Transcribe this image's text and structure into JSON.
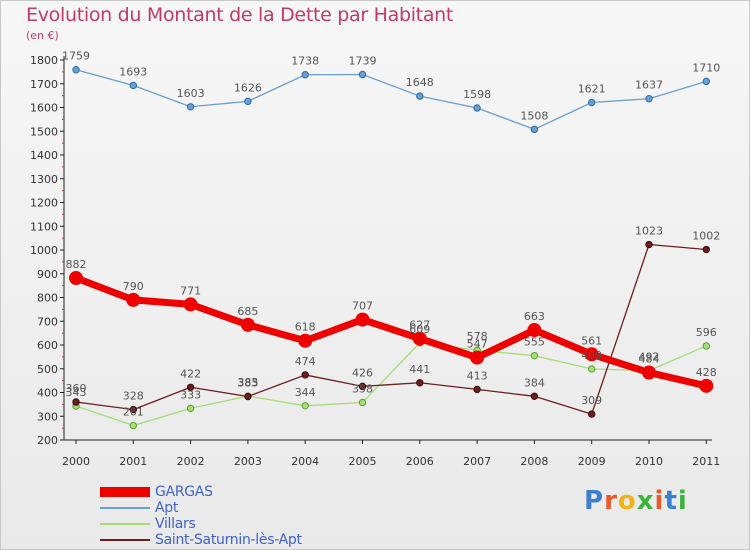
{
  "header": {
    "title": "Evolution du Montant de la Dette par Habitant",
    "subtitle": "(en €)"
  },
  "brand": {
    "logo_text": "Proxiti",
    "letter_colors": [
      "#3c7fd0",
      "#e85a28",
      "#f0b418",
      "#3cb43c",
      "#e85a28",
      "#3c7fd0",
      "#3cb43c"
    ]
  },
  "chart_data": {
    "type": "line",
    "title": "Evolution du Montant de la Dette par Habitant",
    "subtitle": "(en €)",
    "xlabel": "",
    "ylabel": "",
    "x": [
      "2000",
      "2001",
      "2002",
      "2003",
      "2004",
      "2005",
      "2006",
      "2007",
      "2008",
      "2009",
      "2010",
      "2011"
    ],
    "ylim": [
      200,
      1800
    ],
    "yticks": [
      200,
      300,
      400,
      500,
      600,
      700,
      800,
      900,
      1000,
      1100,
      1200,
      1300,
      1400,
      1500,
      1600,
      1700,
      1800
    ],
    "grid": false,
    "legend_position": "bottom-left",
    "series": [
      {
        "name": "GARGAS",
        "color": "#ee0000",
        "values": [
          882,
          790,
          771,
          685,
          618,
          707,
          627,
          547,
          663,
          561,
          484,
          428
        ]
      },
      {
        "name": "Apt",
        "color": "#6aa0d0",
        "values": [
          1759,
          1693,
          1603,
          1626,
          1738,
          1739,
          1648,
          1598,
          1508,
          1621,
          1637,
          1710
        ]
      },
      {
        "name": "Villars",
        "color": "#a8dc78",
        "values": [
          343,
          261,
          333,
          385,
          344,
          358,
          609,
          578,
          555,
          499,
          492,
          596
        ]
      },
      {
        "name": "Saint-Saturnin-lès-Apt",
        "color": "#6b1e1e",
        "values": [
          360,
          328,
          422,
          383,
          474,
          426,
          441,
          413,
          384,
          309,
          1023,
          1002
        ]
      }
    ]
  }
}
